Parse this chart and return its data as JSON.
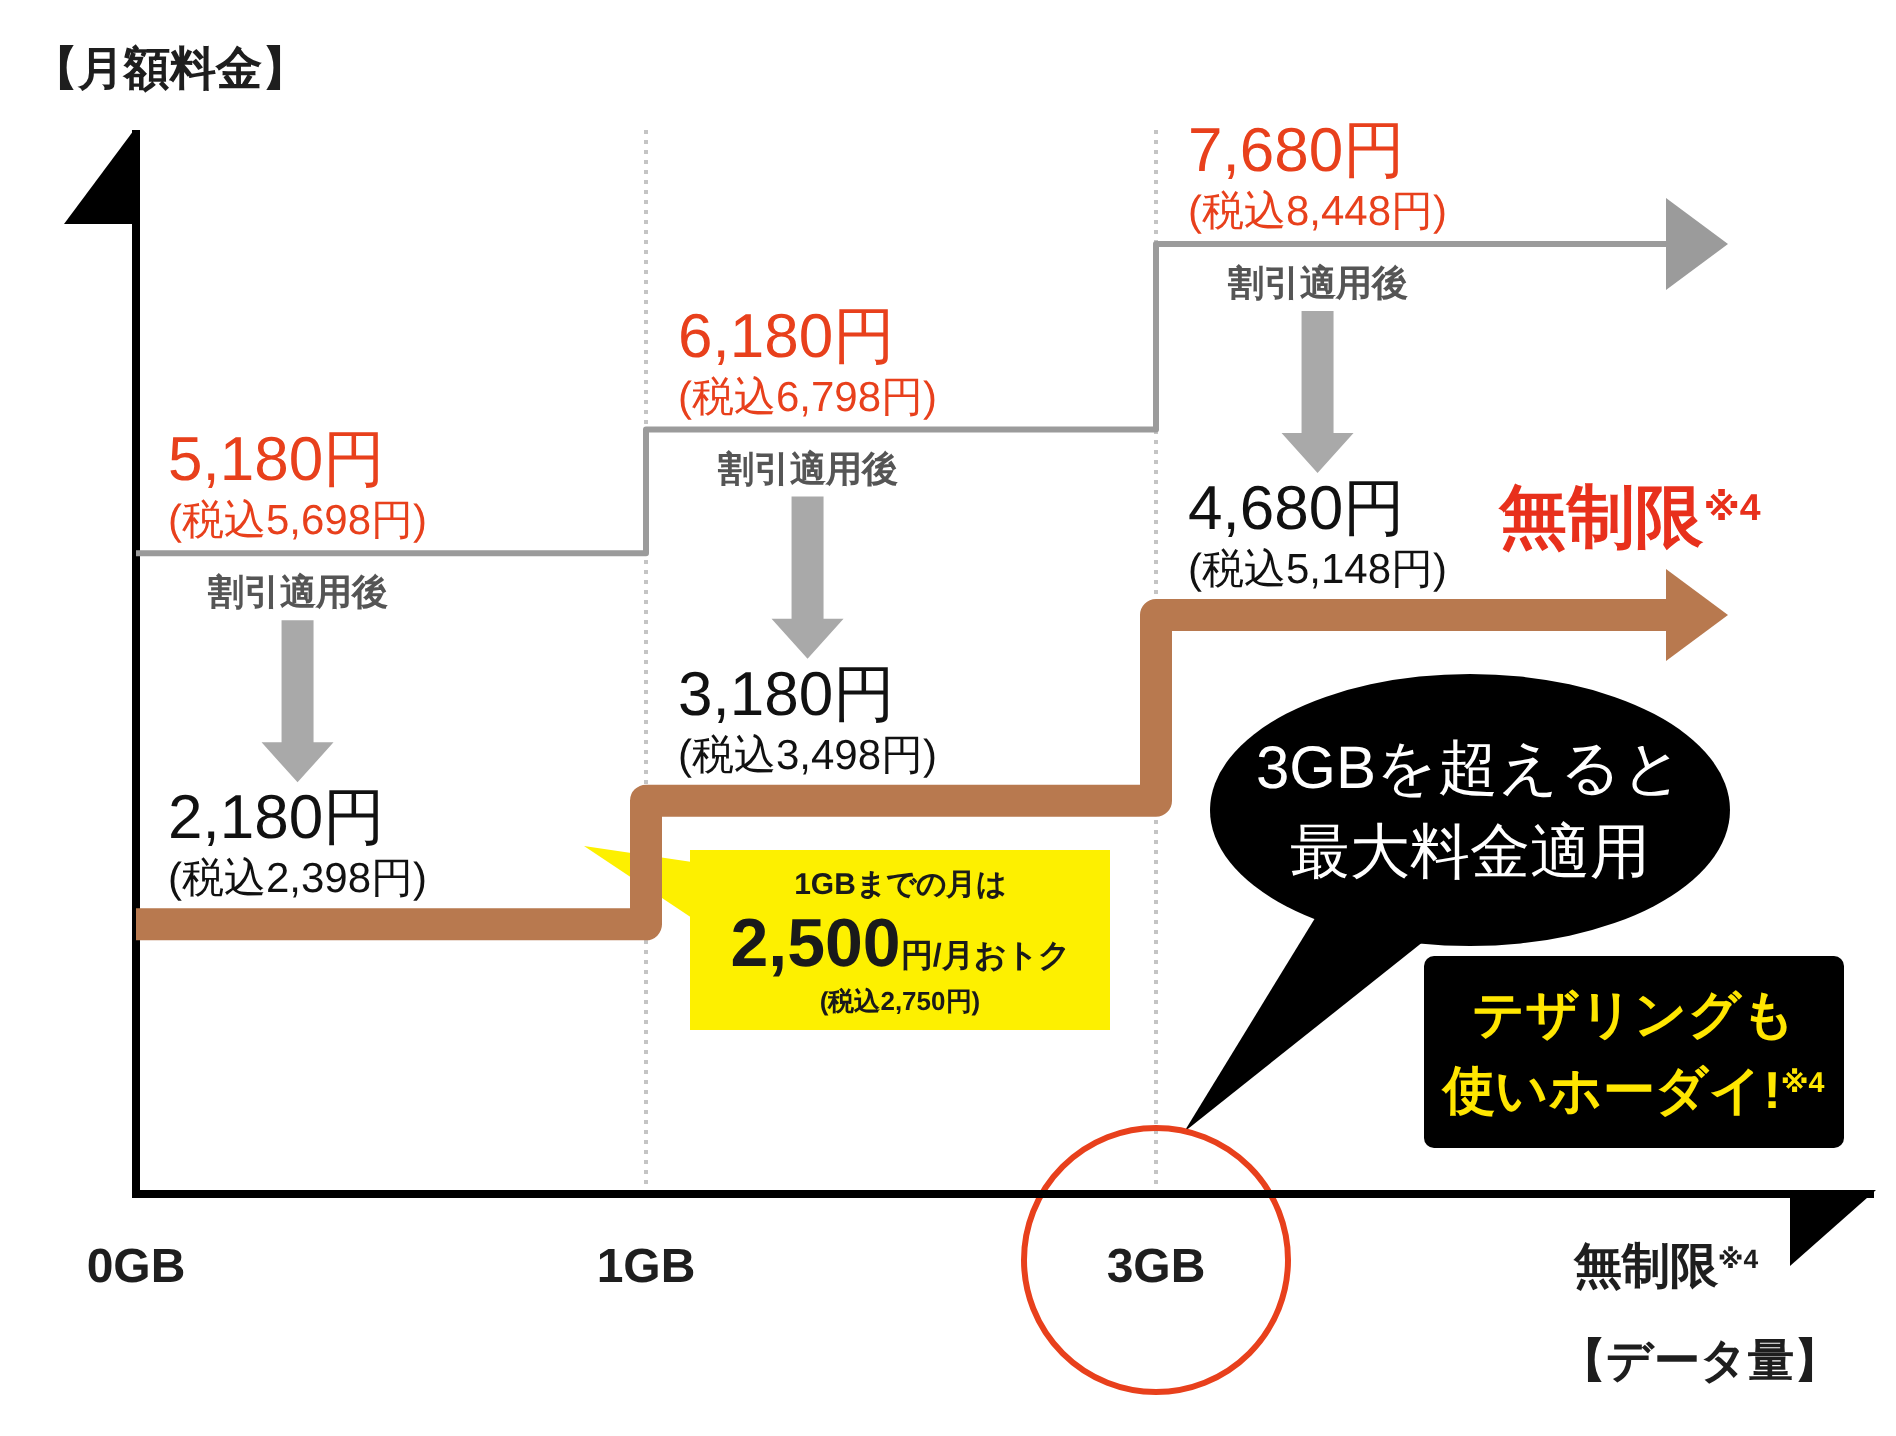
{
  "chart_data": {
    "type": "step",
    "xlabel": "【データ量】",
    "ylabel": "【月額料金】",
    "categories": [
      "0GB",
      "1GB",
      "3GB",
      "無制限$^{※4}$"
    ],
    "tick_labels": "x",
    "series": [
      {
        "color": "#9b9b9b",
        "values": [
          5180,
          6180,
          7680,
          7680
        ],
        "value_labels": [
          "5,180円\n(税込5,698円)",
          "6,180円\n(税込6,798円)",
          "7,680円\n(税込8,448円)",
          null
        ]
      },
      {
        "name": "割引適用後",
        "color": "#b8794f",
        "values": [
          2180,
          3180,
          4680,
          4680
        ],
        "value_labels": [
          "2,180円\n(税込2,398円)",
          "3,180円\n(税込3,498円)",
          "4,680円\n(税込5,148円)",
          null
        ]
      }
    ],
    "ref_lines": [
      {
        "axis": "x",
        "value": "0GB",
        "color": "#000000",
        "line_style": "solid"
      },
      {
        "axis": "x",
        "value": "1GB",
        "color": "#c4c4c4",
        "line_style": "dotted"
      },
      {
        "axis": "x",
        "value": "3GB",
        "color": "#c4c4c4",
        "line_style": "dotted"
      }
    ],
    "annotations": [
      "1GBまでの月は\n2,500円/月おトク\n(税込2,750円)",
      "3GBを超えると最大料金適用",
      "無制限$^{※4}$",
      "テザリングも使いホーダイ!$^{※4}$"
    ]
  }
}
